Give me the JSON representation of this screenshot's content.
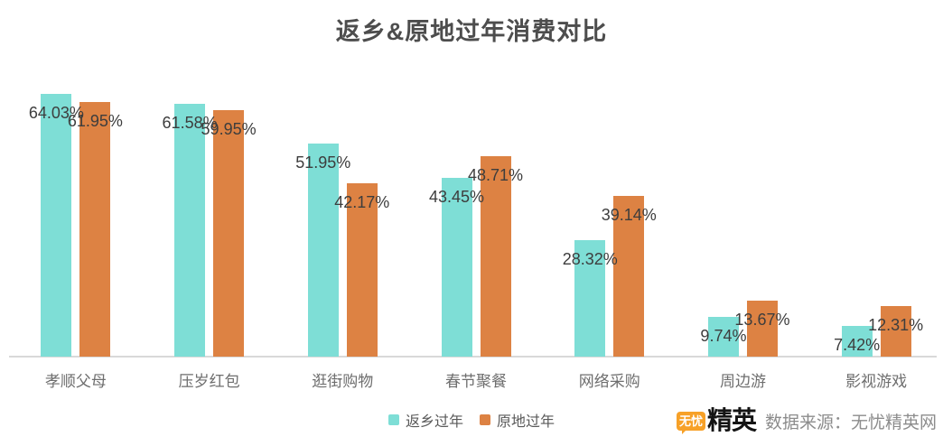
{
  "title": "返乡&原地过年消费对比",
  "chart_data": {
    "type": "bar",
    "title": "返乡&原地过年消费对比",
    "categories": [
      "孝顺父母",
      "压岁红包",
      "逛街购物",
      "春节聚餐",
      "网络采购",
      "周边游",
      "影视游戏"
    ],
    "series": [
      {
        "name": "返乡过年",
        "color": "#7EDED6",
        "values": [
          64.03,
          61.58,
          51.95,
          43.45,
          28.32,
          9.74,
          7.42
        ]
      },
      {
        "name": "原地过年",
        "color": "#DD8243",
        "values": [
          61.95,
          59.95,
          42.17,
          48.71,
          39.14,
          13.67,
          12.31
        ]
      }
    ],
    "value_suffix": "%",
    "value_labels": true,
    "ylim": [
      0,
      70
    ],
    "grid": false,
    "legend_position": "bottom-center"
  },
  "footer": {
    "logo_bubble_text": "无忧",
    "logo_brand_text": "精英",
    "source_text": "数据来源：无忧精英网"
  },
  "colors": {
    "title": "#4D4D4D",
    "value_label": "#3D3D3D",
    "category_label": "#6E6E6E",
    "legend_label": "#595959",
    "axis_line": "#D9D9D9",
    "source_text": "#8C8C8C",
    "logo_bubble": "#F7A128"
  }
}
